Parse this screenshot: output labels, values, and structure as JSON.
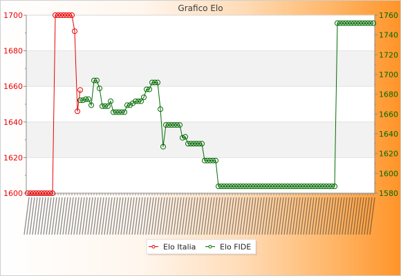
{
  "chart_data": {
    "type": "line",
    "title": "Grafico Elo",
    "grid": true,
    "legend_position": "bottom",
    "y_left": {
      "range": [
        1600,
        1700
      ],
      "ticks": [
        1600,
        1620,
        1640,
        1660,
        1680,
        1700
      ]
    },
    "y_right": {
      "range": [
        1580,
        1760
      ],
      "ticks": [
        1580,
        1600,
        1620,
        1640,
        1660,
        1680,
        1700,
        1720,
        1740,
        1760
      ]
    },
    "series": [
      {
        "name": "Elo Italia",
        "axis": "left",
        "color": "#e60000",
        "values": [
          1600,
          1600,
          1600,
          1600,
          1600,
          1600,
          1600,
          1600,
          1600,
          1600,
          1700,
          1700,
          1700,
          1700,
          1700,
          1700,
          1700,
          1691,
          1646,
          1658
        ]
      },
      {
        "name": "Elo FIDE",
        "axis": "right",
        "color": "#006a00",
        "values": [
          null,
          null,
          null,
          null,
          null,
          null,
          null,
          null,
          null,
          null,
          null,
          null,
          null,
          null,
          null,
          null,
          null,
          null,
          null,
          1674,
          1674,
          1675,
          1675,
          1669,
          1694,
          1694,
          1686,
          1668,
          1668,
          1668,
          1673,
          1662,
          1662,
          1662,
          1662,
          1662,
          1669,
          1669,
          1671,
          1673,
          1673,
          1673,
          1677,
          1685,
          1685,
          1692,
          1692,
          1692,
          1665,
          1627,
          1649,
          1649,
          1649,
          1649,
          1649,
          1649,
          1636,
          1637,
          1630,
          1630,
          1630,
          1630,
          1630,
          1630,
          1613,
          1613,
          1613,
          1613,
          1613,
          1587,
          1587,
          1587,
          1587,
          1587,
          1587,
          1587,
          1587,
          1587,
          1587,
          1587,
          1587,
          1587,
          1587,
          1587,
          1587,
          1587,
          1587,
          1587,
          1587,
          1587,
          1587,
          1587,
          1587,
          1587,
          1587,
          1587,
          1587,
          1587,
          1587,
          1587,
          1587,
          1587,
          1587,
          1587,
          1587,
          1587,
          1587,
          1587,
          1587,
          1587,
          1587,
          1587,
          1752,
          1752,
          1752,
          1752,
          1752,
          1752,
          1752,
          1752,
          1752,
          1752,
          1752,
          1752,
          1752,
          1752
        ]
      }
    ]
  }
}
